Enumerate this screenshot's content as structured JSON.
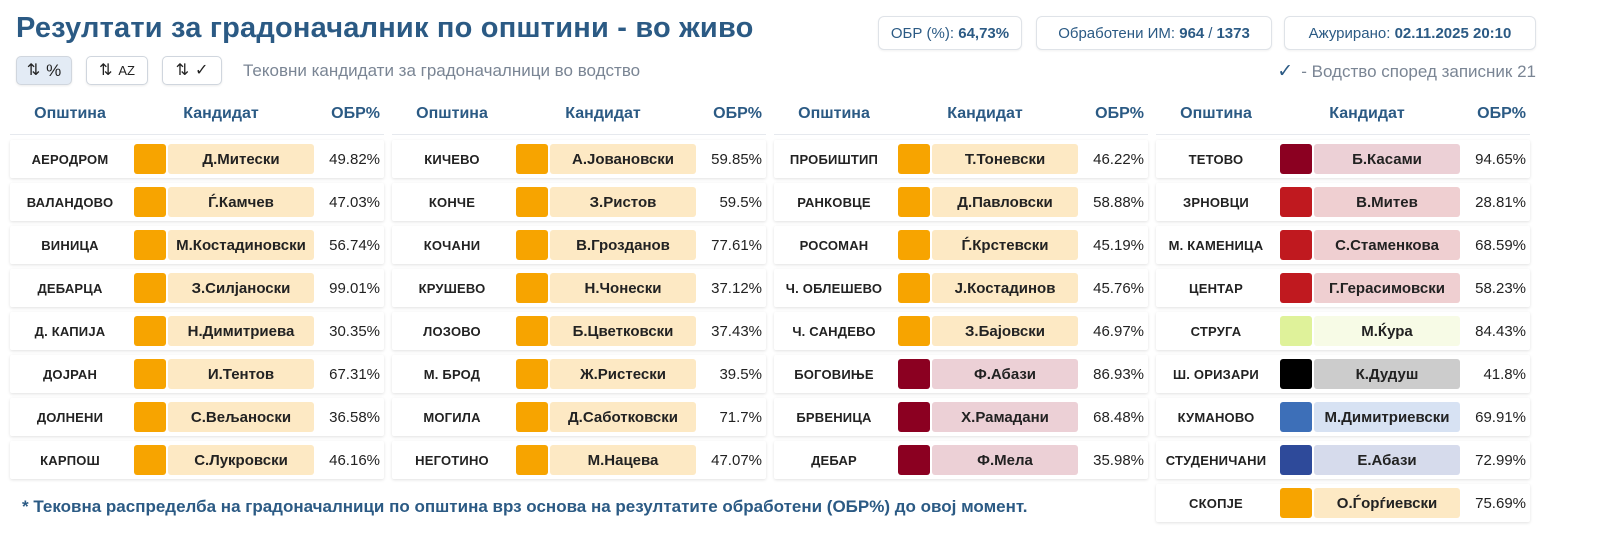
{
  "header": {
    "title": "Резултати за градоначалник по општини - во живо",
    "obr_label": "ОБР (%):",
    "obr_value": "64,73%",
    "processed_label": "Обработени ИМ:",
    "processed_value": "964",
    "processed_sep": "/",
    "processed_total": "1373",
    "updated_label": "Ажурирано:",
    "updated_value": "02.11.2025 20:10"
  },
  "toolbar": {
    "sort_percent_label": "%",
    "sort_alpha_label": "AZ",
    "subtitle": "Тековни кандидати за градоначалници во водство",
    "legend_text": "- Водство според записник 21"
  },
  "columns": {
    "municipality": "Општина",
    "candidate": "Кандидат",
    "obr": "ОБР%"
  },
  "colors": {
    "orange": "#f7a400",
    "orange_bg": "#fde9c4",
    "maroon": "#8b0021",
    "maroon_bg": "#ecd0d6",
    "red": "#c0191f",
    "red_bg": "#efcfd1",
    "lime": "#dff29a",
    "lime_bg": "#f7fbe6",
    "black": "#000000",
    "grey_bg": "#cccccc",
    "blue": "#3d6fb8",
    "blue_bg": "#d7e2f3",
    "navy": "#2e4a9a",
    "navy_bg": "#d6dbec",
    "accent": "#2b5a84"
  },
  "panels": [
    [
      {
        "municipality": "АЕРОДРОМ",
        "candidate": "Д.Митески",
        "obr": "49.82%",
        "party": "orange"
      },
      {
        "municipality": "ВАЛАНДОВО",
        "candidate": "Ѓ.Камчев",
        "obr": "47.03%",
        "party": "orange"
      },
      {
        "municipality": "ВИНИЦА",
        "candidate": "М.Костадиновски",
        "obr": "56.74%",
        "party": "orange"
      },
      {
        "municipality": "ДЕБАРЦА",
        "candidate": "З.Силјаноски",
        "obr": "99.01%",
        "party": "orange"
      },
      {
        "municipality": "Д. КАПИЈА",
        "candidate": "Н.Димитриева",
        "obr": "30.35%",
        "party": "orange"
      },
      {
        "municipality": "ДОЈРАН",
        "candidate": "И.Тентов",
        "obr": "67.31%",
        "party": "orange"
      },
      {
        "municipality": "ДОЛНЕНИ",
        "candidate": "С.Вељаноски",
        "obr": "36.58%",
        "party": "orange"
      },
      {
        "municipality": "КАРПОШ",
        "candidate": "С.Лукровски",
        "obr": "46.16%",
        "party": "orange"
      }
    ],
    [
      {
        "municipality": "КИЧЕВО",
        "candidate": "А.Јовановски",
        "obr": "59.85%",
        "party": "orange"
      },
      {
        "municipality": "КОНЧЕ",
        "candidate": "З.Ристов",
        "obr": "59.5%",
        "party": "orange"
      },
      {
        "municipality": "КОЧАНИ",
        "candidate": "В.Грозданов",
        "obr": "77.61%",
        "party": "orange"
      },
      {
        "municipality": "КРУШЕВО",
        "candidate": "Н.Чонески",
        "obr": "37.12%",
        "party": "orange"
      },
      {
        "municipality": "ЛОЗОВО",
        "candidate": "Б.Цветковски",
        "obr": "37.43%",
        "party": "orange"
      },
      {
        "municipality": "М. БРОД",
        "candidate": "Ж.Ристески",
        "obr": "39.5%",
        "party": "orange"
      },
      {
        "municipality": "МОГИЛА",
        "candidate": "Д.Саботковски",
        "obr": "71.7%",
        "party": "orange"
      },
      {
        "municipality": "НЕГОТИНО",
        "candidate": "М.Нацева",
        "obr": "47.07%",
        "party": "orange"
      }
    ],
    [
      {
        "municipality": "ПРОБИШТИП",
        "candidate": "Т.Тоневски",
        "obr": "46.22%",
        "party": "orange"
      },
      {
        "municipality": "РАНКОВЦЕ",
        "candidate": "Д.Павловски",
        "obr": "58.88%",
        "party": "orange"
      },
      {
        "municipality": "РОСОМАН",
        "candidate": "Ѓ.Крстевски",
        "obr": "45.19%",
        "party": "orange"
      },
      {
        "municipality": "Ч. ОБЛЕШЕВО",
        "candidate": "Ј.Костадинов",
        "obr": "45.76%",
        "party": "orange"
      },
      {
        "municipality": "Ч. САНДЕВО",
        "candidate": "З.Бајовски",
        "obr": "46.97%",
        "party": "orange"
      },
      {
        "municipality": "БОГОВИЊЕ",
        "candidate": "Ф.Абази",
        "obr": "86.93%",
        "party": "maroon"
      },
      {
        "municipality": "БРВЕНИЦА",
        "candidate": "Х.Рамадани",
        "obr": "68.48%",
        "party": "maroon"
      },
      {
        "municipality": "ДЕБАР",
        "candidate": "Ф.Мела",
        "obr": "35.98%",
        "party": "maroon"
      }
    ],
    [
      {
        "municipality": "ТЕТОВО",
        "candidate": "Б.Касами",
        "obr": "94.65%",
        "party": "maroon"
      },
      {
        "municipality": "ЗРНОВЦИ",
        "candidate": "В.Митев",
        "obr": "28.81%",
        "party": "red"
      },
      {
        "municipality": "М. КАМЕНИЦА",
        "candidate": "С.Стаменкова",
        "obr": "68.59%",
        "party": "red"
      },
      {
        "municipality": "ЦЕНТАР",
        "candidate": "Г.Герасимовски",
        "obr": "58.23%",
        "party": "red"
      },
      {
        "municipality": "СТРУГА",
        "candidate": "М.Ќура",
        "obr": "84.43%",
        "party": "lime"
      },
      {
        "municipality": "Ш. ОРИЗАРИ",
        "candidate": "К.Дудуш",
        "obr": "41.8%",
        "party": "black"
      },
      {
        "municipality": "КУМАНОВО",
        "candidate": "М.Димитриевски",
        "obr": "69.91%",
        "party": "blue"
      },
      {
        "municipality": "СТУДЕНИЧАНИ",
        "candidate": "Е.Абази",
        "obr": "72.99%",
        "party": "navy"
      },
      {
        "municipality": "СКОПЈЕ",
        "candidate": "О.Ѓорѓиевски",
        "obr": "75.69%",
        "party": "orange"
      }
    ]
  ],
  "footnote": "* Тековна распределба на градоначалници по општина врз основа на резултатите обработени (ОБР%) до овој момент."
}
